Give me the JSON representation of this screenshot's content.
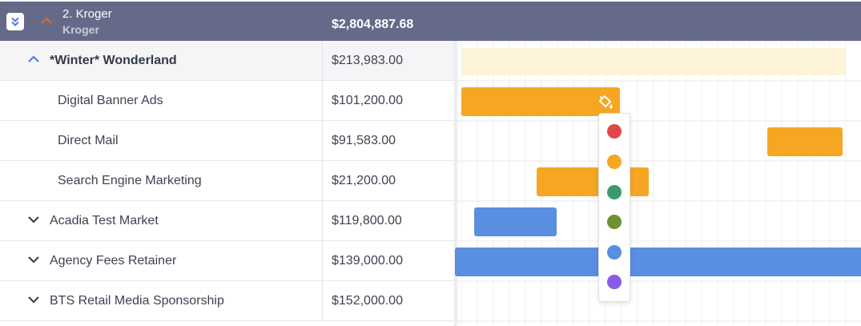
{
  "header": {
    "title": "2. Kroger",
    "subtitle": "Kroger",
    "amount": "$2,804,887.68"
  },
  "rows": [
    {
      "name": "*Winter* Wonderland",
      "amount": "$213,983.00",
      "type": "group"
    },
    {
      "name": "Digital Banner Ads",
      "amount": "$101,200.00",
      "type": "child"
    },
    {
      "name": "Direct Mail",
      "amount": "$91,583.00",
      "type": "child"
    },
    {
      "name": "Search Engine Marketing",
      "amount": "$21,200.00",
      "type": "child"
    },
    {
      "name": "Acadia Test Market",
      "amount": "$119,800.00",
      "type": "collapsed"
    },
    {
      "name": "Agency Fees Retainer",
      "amount": "$139,000.00",
      "type": "collapsed"
    },
    {
      "name": "BTS Retail Media Sponsorship",
      "amount": "$152,000.00",
      "type": "collapsed"
    }
  ],
  "colors": {
    "header_bg": "#646a88",
    "group_bar": "#fdf3d7",
    "orange": "#f5a623",
    "blue": "#5a8ee0",
    "chevron_up_orange": "#e06b2a",
    "chevron_up_blue": "#4a7fe0",
    "chevron_down": "#3c4350"
  },
  "palette_colors": [
    "#e04848",
    "#f5a623",
    "#3a9a6a",
    "#6e9230",
    "#5a8ee0",
    "#8a5ae8"
  ],
  "icons": {
    "collapse_all": "double-chevron-down-icon",
    "header_expand": "chevron-up-icon",
    "group_expand": "chevron-up-icon",
    "row_expand": "chevron-down-icon",
    "fill_color": "paint-bucket-icon"
  }
}
